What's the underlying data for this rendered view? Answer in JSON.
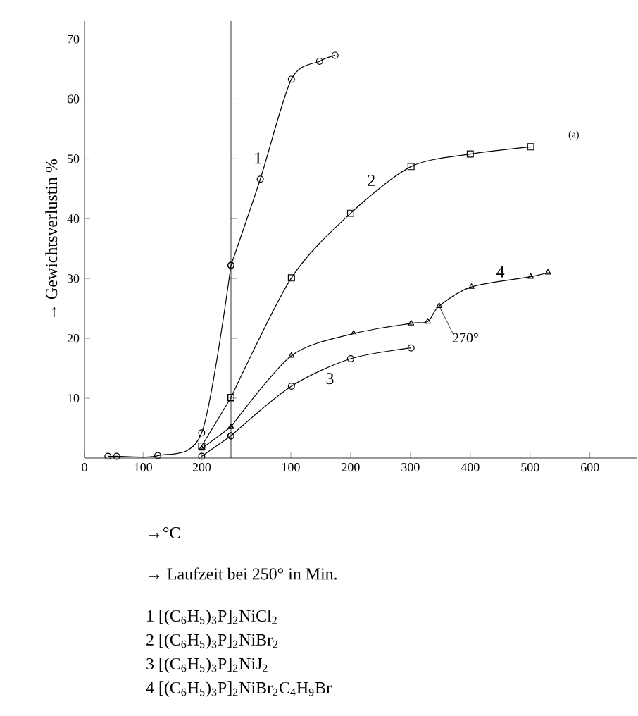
{
  "chart_data": [
    {
      "type": "line",
      "xlabel": "→°C",
      "ylabel": "→ Gewichtsverlustin %",
      "xlim": [
        0,
        250
      ],
      "ylim": [
        0,
        73
      ],
      "xticks": [
        0,
        100,
        200
      ],
      "yticks": [
        10,
        20,
        30,
        40,
        50,
        60,
        70
      ],
      "grid": false,
      "line_style": "solid",
      "series": [
        {
          "color": "#000000",
          "marker": "circle",
          "x": [
            40,
            55,
            125,
            200,
            250
          ],
          "values": [
            0.3,
            0.3,
            0.4,
            4.2,
            32.2
          ]
        },
        {
          "color": "#000000",
          "marker": "square",
          "x": [
            200,
            250
          ],
          "values": [
            2,
            10.1
          ]
        },
        {
          "color": "#000000",
          "marker": "circle",
          "x": [
            200,
            250
          ],
          "values": [
            0.3,
            3.7
          ]
        },
        {
          "color": "#000000",
          "marker": "triangle",
          "x": [
            200,
            250
          ],
          "values": [
            1.6,
            5.2
          ]
        }
      ],
      "annotations": [
        "1   [(C$_{6}$H$_{5}$)$_{3}$P]$_{2}$NiCl$_{2}$",
        "2   [(C$_{6}$H$_{5}$)$_{3}$P]$_{2}$NiBr$_{2}$",
        "3   [(C$_{6}$H$_{5}$)$_{3}$P]$_{2}$NiJ$_{2}$",
        "4   [(C$_{6}$H$_{5}$)$_{3}$P]$_{2}$NiBr$_{2}$C$_{4}$H$_{9}$Br"
      ]
    },
    {
      "type": "line",
      "xlabel": "→ Laufzeit bei 250° in Min.",
      "xlim": [
        0,
        678
      ],
      "ylim": [
        0,
        73
      ],
      "xticks": [
        100,
        200,
        300,
        400,
        500,
        600
      ],
      "yticks": [
        10,
        20,
        30,
        40,
        50,
        60,
        70
      ],
      "tick_labels": "x",
      "grid": false,
      "line_style": "solid",
      "series": [
        {
          "name": "1",
          "color": "#000000",
          "marker": "circle",
          "x": [
            0,
            49,
            101,
            148,
            174
          ],
          "values": [
            32.2,
            46.6,
            63.3,
            66.3,
            67.3
          ]
        },
        {
          "name": "2",
          "color": "#000000",
          "marker": "square",
          "x": [
            0,
            101,
            200,
            301,
            400,
            501
          ],
          "values": [
            10.1,
            30.1,
            40.9,
            48.7,
            50.8,
            52
          ]
        },
        {
          "name": "3",
          "color": "#000000",
          "marker": "circle",
          "x": [
            0,
            101,
            200,
            301
          ],
          "values": [
            3.7,
            12.0,
            16.6,
            18.4
          ]
        },
        {
          "name": "4",
          "color": "#000000",
          "marker": "triangle",
          "x": [
            0,
            101,
            205,
            301,
            329,
            348,
            402,
            501,
            530
          ],
          "values": [
            5.2,
            17.1,
            20.8,
            22.5,
            22.8,
            25.4,
            28.6,
            30.3,
            31
          ]
        }
      ],
      "annotations": [
        {
          "text": "270°",
          "x": 348,
          "y": 25.4
        },
        "(a)"
      ]
    }
  ]
}
